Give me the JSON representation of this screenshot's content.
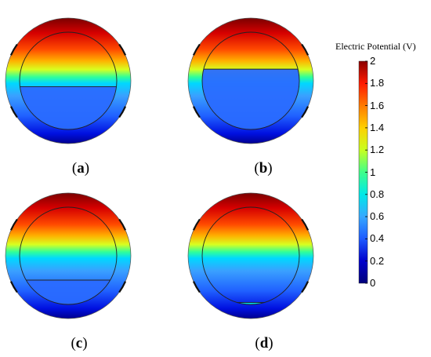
{
  "colorbar": {
    "title": "Electric Potential (V)",
    "min": 0,
    "max": 2,
    "ticks": [
      {
        "value": 2,
        "label": "2"
      },
      {
        "value": 1.8,
        "label": "1.8"
      },
      {
        "value": 1.6,
        "label": "1.6"
      },
      {
        "value": 1.4,
        "label": "1.4"
      },
      {
        "value": 1.2,
        "label": "1.2"
      },
      {
        "value": 1,
        "label": "1"
      },
      {
        "value": 0.8,
        "label": "0.8"
      },
      {
        "value": 0.6,
        "label": "0.6"
      },
      {
        "value": 0.4,
        "label": "0.4"
      },
      {
        "value": 0.2,
        "label": "0.2"
      },
      {
        "value": 0,
        "label": "0"
      }
    ],
    "colors": [
      "#00007a",
      "#0000cc",
      "#1e5aff",
      "#36a8ff",
      "#00e8e8",
      "#40ff8a",
      "#c8ff20",
      "#ffd000",
      "#ff7a00",
      "#ff1a00",
      "#8a0000"
    ]
  },
  "panels": [
    {
      "id": "a",
      "label_open": "(",
      "label_letter": "a",
      "label_close": ")",
      "interface_level": 0.44
    },
    {
      "id": "b",
      "label_open": "(",
      "label_letter": "b",
      "label_close": ")",
      "interface_level": 0.62
    },
    {
      "id": "c",
      "label_open": "(",
      "label_letter": "c",
      "label_close": ")",
      "interface_level": 0.25
    },
    {
      "id": "d",
      "label_open": "(",
      "label_letter": "d",
      "label_close": ")",
      "interface_level": 0.02
    }
  ]
}
